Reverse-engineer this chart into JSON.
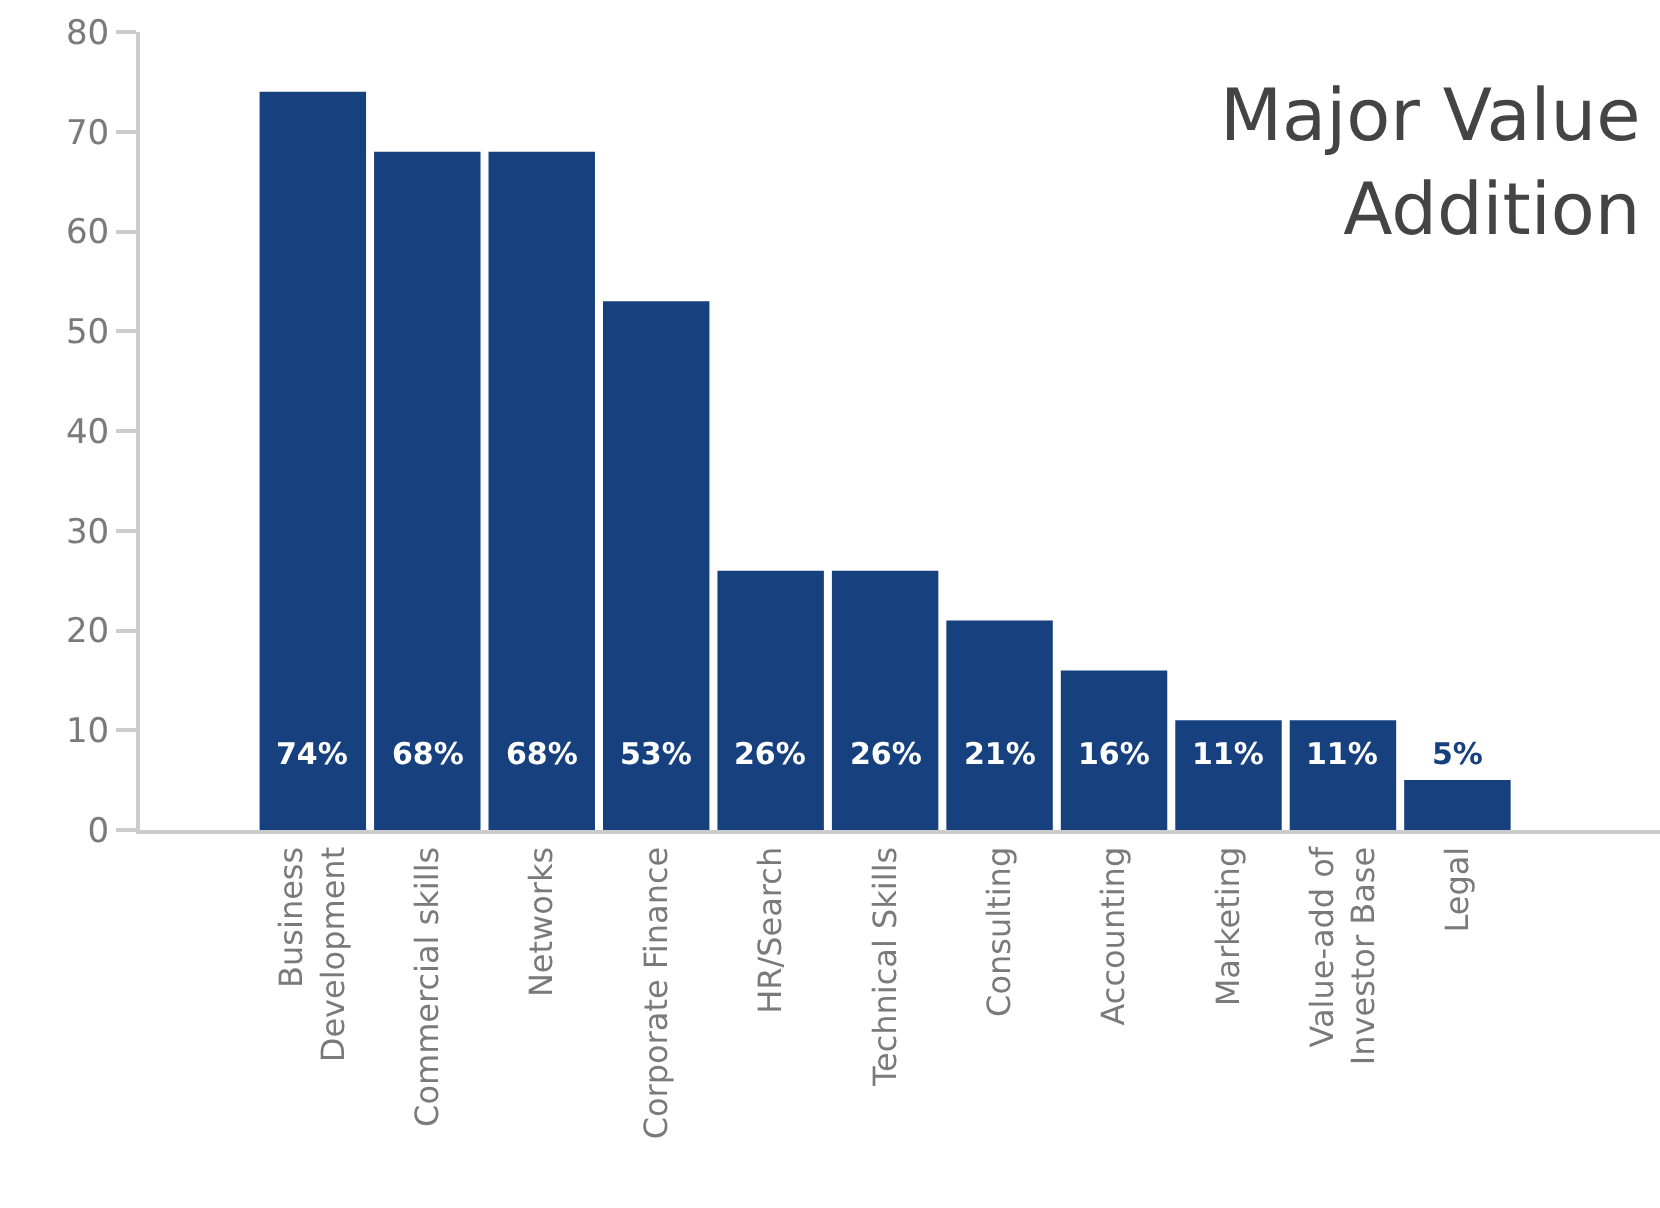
{
  "chart_data": {
    "type": "bar",
    "title": "Major Value Addition",
    "categories": [
      "Business Development",
      "Commercial skills",
      "Networks",
      "Corporate Finance",
      "HR/Search",
      "Technical Skills",
      "Consulting",
      "Accounting",
      "Marketing",
      "Value-add of Investor Base",
      "Legal"
    ],
    "values": [
      74,
      68,
      68,
      53,
      26,
      26,
      21,
      16,
      11,
      11,
      5
    ],
    "value_labels": [
      "74%",
      "68%",
      "68%",
      "53%",
      "26%",
      "26%",
      "21%",
      "16%",
      "11%",
      "11%",
      "5%"
    ],
    "color": "#17407e",
    "ylim": [
      0,
      80
    ],
    "yticks": [
      0,
      10,
      20,
      30,
      40,
      50,
      60,
      70,
      80
    ]
  }
}
